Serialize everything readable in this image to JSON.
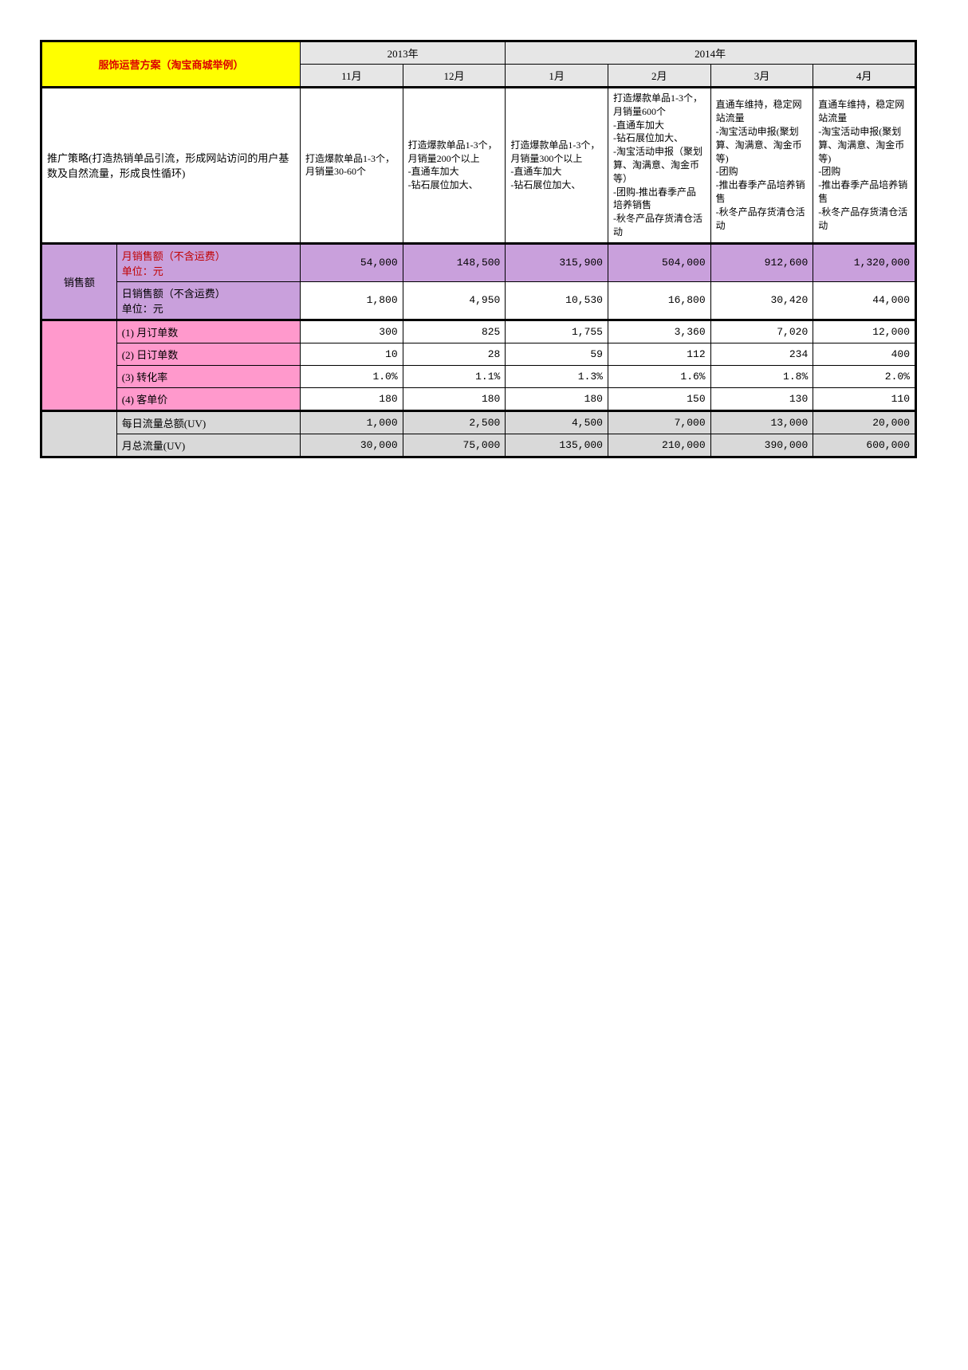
{
  "title": "服饰运营方案（淘宝商城举例）",
  "years": {
    "y2013": "2013年",
    "y2014": "2014年"
  },
  "months": [
    "11月",
    "12月",
    "1月",
    "2月",
    "3月",
    "4月"
  ],
  "strategy": {
    "label": "推广策略(打造热销单品引流，形成网站访问的用户基数及自然流量，形成良性循环)",
    "cells": [
      "打造爆款单品1-3个，月销量30-60个",
      "打造爆款单品1-3个，月销量200个以上\n-直通车加大\n-钻石展位加大、",
      "打造爆款单品1-3个，月销量300个以上\n-直通车加大\n-钻石展位加大、",
      "打造爆款单品1-3个，月销量600个\n-直通车加大\n-钻石展位加大、\n-淘宝活动申报（聚划算、淘满意、淘金币等）\n-团购-推出春季产品培养销售\n-秋冬产品存货清仓活动",
      "直通车维持，稳定网站流量\n-淘宝活动申报(聚划算、淘满意、淘金币等)\n-团购\n-推出春季产品培养销售\n-秋冬产品存货清仓活动",
      "直通车维持，稳定网站流量\n-淘宝活动申报(聚划算、淘满意、淘金币等)\n-团购\n-推出春季产品培养销售\n-秋冬产品存货清仓活动"
    ]
  },
  "sales": {
    "group_label": "销售额",
    "month_label": "月销售额（不含运费）\n单位：元",
    "month_vals": [
      "54,000",
      "148,500",
      "315,900",
      "504,000",
      "912,600",
      "1,320,000"
    ],
    "day_label": "日销售额（不含运费）\n单位：元",
    "day_vals": [
      "1,800",
      "4,950",
      "10,530",
      "16,800",
      "30,420",
      "44,000"
    ]
  },
  "metrics": {
    "r1": {
      "label": "(1) 月订单数",
      "vals": [
        "300",
        "825",
        "1,755",
        "3,360",
        "7,020",
        "12,000"
      ]
    },
    "r2": {
      "label": "(2) 日订单数",
      "vals": [
        "10",
        "28",
        "59",
        "112",
        "234",
        "400"
      ]
    },
    "r3": {
      "label": "(3) 转化率",
      "vals": [
        "1.0%",
        "1.1%",
        "1.3%",
        "1.6%",
        "1.8%",
        "2.0%"
      ]
    },
    "r4": {
      "label": "(4) 客单价",
      "vals": [
        "180",
        "180",
        "180",
        "150",
        "130",
        "110"
      ]
    }
  },
  "traffic": {
    "daily_label": "每日流量总额(UV)",
    "daily_vals": [
      "1,000",
      "2,500",
      "4,500",
      "7,000",
      "13,000",
      "20,000"
    ],
    "month_label": "月总流量(UV)",
    "month_vals": [
      "30,000",
      "75,000",
      "135,000",
      "210,000",
      "390,000",
      "600,000"
    ]
  },
  "colors": {
    "yellow": "#ffff00",
    "purple": "#c9a0dc",
    "pink": "#ff99cc",
    "grey_head": "#e6e6e6",
    "grey_row": "#d9d9d9",
    "red_text": "#c00000",
    "border": "#000000"
  }
}
